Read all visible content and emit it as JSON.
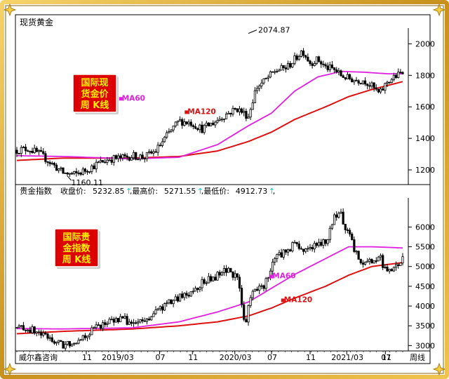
{
  "window_title": "现货黄金",
  "corner_marks": [
    "star-icon",
    "star-icon",
    "star-icon",
    "star-icon"
  ],
  "colors": {
    "candle": "#000000",
    "ma60": "#e020e0",
    "ma120": "#dd1111",
    "badge_bg": "#dd0000",
    "badge_text": "#ffee00",
    "border": "#d9a520",
    "cursor": "#00cccc"
  },
  "chart_data": [
    {
      "type": "candlestick",
      "title": "",
      "frequency": "weekly",
      "badge_lines": [
        "国际现",
        "货金价",
        "周 K线"
      ],
      "ylim": [
        1120,
        2100
      ],
      "yticks": [
        1200,
        1400,
        1600,
        1800,
        2000
      ],
      "ma_labels": [
        {
          "name": "MA60",
          "x": 0.265,
          "y": 1640
        },
        {
          "name": "MA120",
          "x": 0.435,
          "y": 1555
        }
      ],
      "annotations": [
        {
          "text": "2074.87",
          "type": "high",
          "x": 0.6,
          "y": 2074.87
        },
        {
          "text": "1160.11",
          "type": "low",
          "x": 0.13,
          "y": 1160.11
        }
      ],
      "close_anchors": [
        [
          0,
          1325
        ],
        [
          0.03,
          1335
        ],
        [
          0.06,
          1300
        ],
        [
          0.09,
          1240
        ],
        [
          0.12,
          1180
        ],
        [
          0.15,
          1170
        ],
        [
          0.18,
          1200
        ],
        [
          0.21,
          1240
        ],
        [
          0.24,
          1270
        ],
        [
          0.27,
          1275
        ],
        [
          0.3,
          1290
        ],
        [
          0.33,
          1280
        ],
        [
          0.36,
          1320
        ],
        [
          0.39,
          1420
        ],
        [
          0.42,
          1510
        ],
        [
          0.45,
          1500
        ],
        [
          0.48,
          1460
        ],
        [
          0.51,
          1500
        ],
        [
          0.54,
          1550
        ],
        [
          0.57,
          1590
        ],
        [
          0.6,
          1540
        ],
        [
          0.62,
          1720
        ],
        [
          0.64,
          1760
        ],
        [
          0.67,
          1830
        ],
        [
          0.7,
          1850
        ],
        [
          0.72,
          1900
        ],
        [
          0.74,
          1960
        ],
        [
          0.76,
          1880
        ],
        [
          0.78,
          1900
        ],
        [
          0.8,
          1850
        ],
        [
          0.82,
          1840
        ],
        [
          0.84,
          1800
        ],
        [
          0.86,
          1780
        ],
        [
          0.88,
          1770
        ],
        [
          0.9,
          1770
        ],
        [
          0.92,
          1730
        ],
        [
          0.94,
          1680
        ],
        [
          0.96,
          1760
        ],
        [
          1,
          1820
        ]
      ],
      "ma60_anchors": [
        [
          0,
          1290
        ],
        [
          0.12,
          1285
        ],
        [
          0.3,
          1270
        ],
        [
          0.42,
          1280
        ],
        [
          0.52,
          1360
        ],
        [
          0.6,
          1480
        ],
        [
          0.66,
          1560
        ],
        [
          0.72,
          1700
        ],
        [
          0.78,
          1790
        ],
        [
          0.84,
          1825
        ],
        [
          0.9,
          1820
        ],
        [
          0.96,
          1810
        ],
        [
          1,
          1810
        ]
      ],
      "ma120_anchors": [
        [
          0,
          1260
        ],
        [
          0.12,
          1275
        ],
        [
          0.3,
          1275
        ],
        [
          0.42,
          1285
        ],
        [
          0.52,
          1320
        ],
        [
          0.6,
          1380
        ],
        [
          0.66,
          1440
        ],
        [
          0.72,
          1520
        ],
        [
          0.8,
          1600
        ],
        [
          0.86,
          1665
        ],
        [
          0.92,
          1710
        ],
        [
          1,
          1760
        ]
      ]
    },
    {
      "type": "candlestick",
      "title": "贵金指数",
      "frequency": "weekly",
      "stats": [
        {
          "label": "收盘价",
          "value": "5232.85"
        },
        {
          "label": "最高价",
          "value": "5271.55"
        },
        {
          "label": "最低价",
          "value": "4912.73"
        }
      ],
      "badge_lines": [
        "国际贵",
        "金指数",
        "周 K线"
      ],
      "ylim": [
        2900,
        6700
      ],
      "yticks": [
        3000,
        3500,
        4000,
        4500,
        5000,
        5500,
        6000
      ],
      "ma_labels": [
        {
          "name": "MA60",
          "x": 0.655,
          "y": 4700
        },
        {
          "name": "MA120",
          "x": 0.685,
          "y": 4100
        }
      ],
      "close_anchors": [
        [
          0,
          3450
        ],
        [
          0.03,
          3420
        ],
        [
          0.06,
          3300
        ],
        [
          0.09,
          3150
        ],
        [
          0.12,
          3000
        ],
        [
          0.15,
          3120
        ],
        [
          0.18,
          3280
        ],
        [
          0.21,
          3500
        ],
        [
          0.24,
          3600
        ],
        [
          0.27,
          3700
        ],
        [
          0.3,
          3550
        ],
        [
          0.33,
          3600
        ],
        [
          0.36,
          3850
        ],
        [
          0.39,
          4050
        ],
        [
          0.42,
          4200
        ],
        [
          0.45,
          4350
        ],
        [
          0.48,
          4600
        ],
        [
          0.51,
          4700
        ],
        [
          0.55,
          4950
        ],
        [
          0.575,
          4600
        ],
        [
          0.59,
          3500
        ],
        [
          0.61,
          4350
        ],
        [
          0.64,
          4500
        ],
        [
          0.67,
          5250
        ],
        [
          0.7,
          5400
        ],
        [
          0.72,
          5600
        ],
        [
          0.74,
          5400
        ],
        [
          0.76,
          5500
        ],
        [
          0.78,
          5550
        ],
        [
          0.8,
          5600
        ],
        [
          0.82,
          6200
        ],
        [
          0.84,
          6300
        ],
        [
          0.86,
          5800
        ],
        [
          0.88,
          5300
        ],
        [
          0.9,
          5100
        ],
        [
          0.92,
          5150
        ],
        [
          0.94,
          5250
        ],
        [
          0.96,
          4800
        ],
        [
          0.98,
          4950
        ],
        [
          1,
          5200
        ]
      ],
      "ma60_anchors": [
        [
          0,
          3430
        ],
        [
          0.12,
          3420
        ],
        [
          0.3,
          3450
        ],
        [
          0.42,
          3600
        ],
        [
          0.52,
          3850
        ],
        [
          0.6,
          4100
        ],
        [
          0.66,
          4450
        ],
        [
          0.72,
          4800
        ],
        [
          0.8,
          5200
        ],
        [
          0.86,
          5500
        ],
        [
          0.92,
          5500
        ],
        [
          1,
          5470
        ]
      ],
      "ma120_anchors": [
        [
          0,
          3300
        ],
        [
          0.12,
          3360
        ],
        [
          0.3,
          3420
        ],
        [
          0.42,
          3500
        ],
        [
          0.52,
          3600
        ],
        [
          0.6,
          3750
        ],
        [
          0.66,
          3950
        ],
        [
          0.72,
          4200
        ],
        [
          0.8,
          4500
        ],
        [
          0.86,
          4780
        ],
        [
          0.92,
          5000
        ],
        [
          1,
          5100
        ]
      ]
    }
  ],
  "x_axis": {
    "ticks": [
      {
        "label": "11",
        "x": 0.18
      },
      {
        "label": "2019/03",
        "x": 0.26
      },
      {
        "label": "07",
        "x": 0.37
      },
      {
        "label": "11",
        "x": 0.455
      },
      {
        "label": "2020/03",
        "x": 0.565
      },
      {
        "label": "07",
        "x": 0.66
      },
      {
        "label": "11",
        "x": 0.76
      },
      {
        "label": "2021/03",
        "x": 0.855
      },
      {
        "label": "07",
        "x": 0.955
      }
    ],
    "end_ticks": [
      {
        "label": "11",
        "x": 0.96
      }
    ],
    "left_label": "威尔鑫咨询",
    "right_label": "周线"
  }
}
